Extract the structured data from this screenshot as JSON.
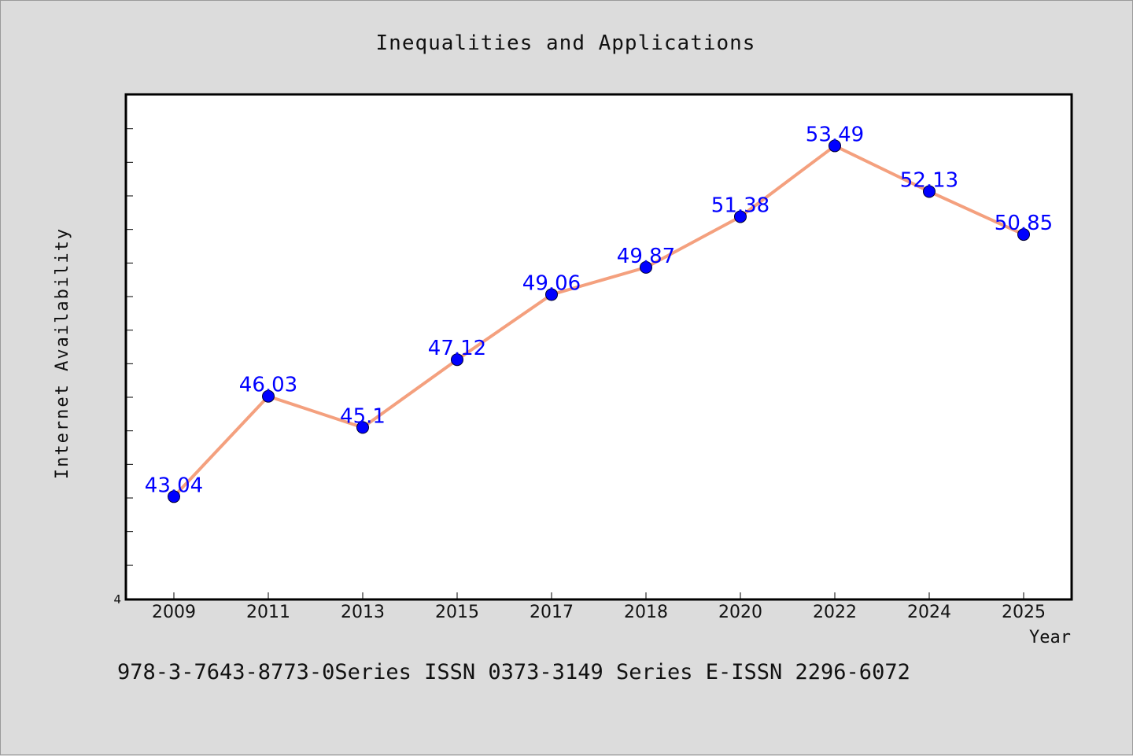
{
  "chart_data": {
    "type": "line",
    "title": "Inequalities and Applications",
    "xlabel": "Year",
    "ylabel": "Internet Availability",
    "categories": [
      "2009",
      "2011",
      "2013",
      "2015",
      "2017",
      "2018",
      "2020",
      "2022",
      "2024",
      "2025"
    ],
    "series": [
      {
        "values": [
          43.04,
          46.03,
          45.1,
          47.12,
          49.06,
          49.87,
          51.38,
          53.49,
          52.13,
          50.85
        ]
      }
    ],
    "ylim": [
      40,
      55
    ],
    "y_tick_labels": [
      "4"
    ],
    "grid": false,
    "legend": "none",
    "line_color": "#f4a07e",
    "marker_color": "#0000ff",
    "label_color": "#0000ff"
  },
  "footer_text": "978-3-7643-8773-0Series ISSN 0373-3149 Series E-ISSN 2296-6072"
}
